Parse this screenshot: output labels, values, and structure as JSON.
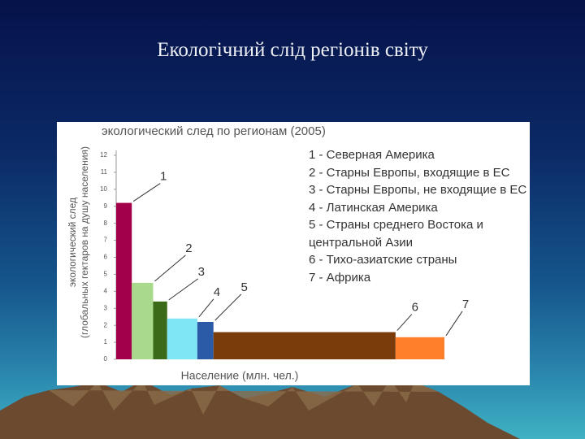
{
  "title": "Екологічний слід регіонів світу",
  "chart_data": {
    "type": "bar",
    "title": "экологический след по регионам (2005)",
    "y_label": "экологический след\n(глобальных гектаров на душу населения)",
    "x_label": "Население (млн. чел.)",
    "categories": [
      "1",
      "2",
      "3",
      "4",
      "5",
      "6",
      "7"
    ],
    "values": [
      9.2,
      4.5,
      3.4,
      2.4,
      2.2,
      1.6,
      1.3
    ],
    "widths": [
      300,
      410,
      270,
      580,
      310,
      3500,
      940
    ],
    "colors": [
      "#a3004c",
      "#a8d98c",
      "#3b6a18",
      "#7fe6f6",
      "#2b5aa6",
      "#7a3c0a",
      "#ff7f2a"
    ],
    "legend": [
      "1 - Северная Америка",
      "2 - Старны Европы, входящие в ЕС",
      "3 - Старны Европы, не входящие в ЕС",
      "4 - Латинская Америка",
      "5 - Страны среднего Востока и\nцентральной Азии",
      "6 - Тихо-азиатские страны",
      "7 - Африка"
    ],
    "ylim": [
      0,
      12
    ],
    "yticks": [
      0,
      1,
      2,
      3,
      4,
      5,
      6,
      7,
      8,
      9,
      10,
      11,
      12
    ]
  }
}
